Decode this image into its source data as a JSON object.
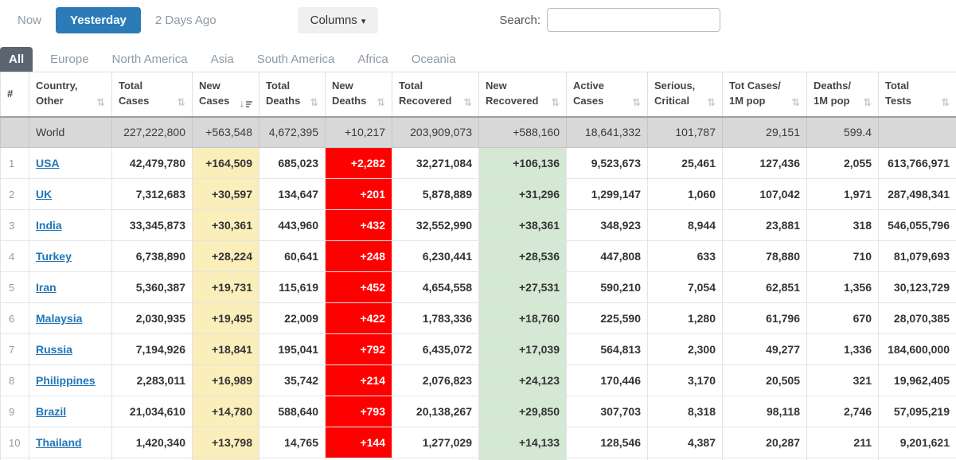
{
  "controls": {
    "time_filters": [
      {
        "label": "Now",
        "active": false
      },
      {
        "label": "Yesterday",
        "active": true
      },
      {
        "label": "2 Days Ago",
        "active": false
      }
    ],
    "columns_label": "Columns",
    "search_label": "Search:",
    "search_value": "",
    "search_placeholder": ""
  },
  "tabs": [
    {
      "label": "All",
      "active": true
    },
    {
      "label": "Europe",
      "active": false
    },
    {
      "label": "North America",
      "active": false
    },
    {
      "label": "Asia",
      "active": false
    },
    {
      "label": "South America",
      "active": false
    },
    {
      "label": "Africa",
      "active": false
    },
    {
      "label": "Oceania",
      "active": false
    }
  ],
  "table": {
    "headers": [
      {
        "id": "rank",
        "lines": [
          "#"
        ],
        "sort": "none"
      },
      {
        "id": "country",
        "lines": [
          "Country,",
          "Other"
        ],
        "sort": "unsorted"
      },
      {
        "id": "total_cases",
        "lines": [
          "Total",
          "Cases"
        ],
        "sort": "unsorted"
      },
      {
        "id": "new_cases",
        "lines": [
          "New",
          "Cases"
        ],
        "sort": "desc"
      },
      {
        "id": "total_deaths",
        "lines": [
          "Total",
          "Deaths"
        ],
        "sort": "unsorted"
      },
      {
        "id": "new_deaths",
        "lines": [
          "New",
          "Deaths"
        ],
        "sort": "unsorted"
      },
      {
        "id": "total_recovered",
        "lines": [
          "Total",
          "Recovered"
        ],
        "sort": "unsorted"
      },
      {
        "id": "new_recovered",
        "lines": [
          "New",
          "Recovered"
        ],
        "sort": "unsorted"
      },
      {
        "id": "active_cases",
        "lines": [
          "Active",
          "Cases"
        ],
        "sort": "unsorted"
      },
      {
        "id": "serious_critical",
        "lines": [
          "Serious,",
          "Critical"
        ],
        "sort": "unsorted"
      },
      {
        "id": "tot_cases_1m",
        "lines": [
          "Tot Cases/",
          "1M pop"
        ],
        "sort": "unsorted"
      },
      {
        "id": "deaths_1m",
        "lines": [
          "Deaths/",
          "1M pop"
        ],
        "sort": "unsorted"
      },
      {
        "id": "total_tests",
        "lines": [
          "Total",
          "Tests"
        ],
        "sort": "unsorted"
      }
    ],
    "world_row": {
      "rank": "",
      "country": "World",
      "total_cases": "227,222,800",
      "new_cases": "+563,548",
      "total_deaths": "4,672,395",
      "new_deaths": "+10,217",
      "total_recovered": "203,909,073",
      "new_recovered": "+588,160",
      "active_cases": "18,641,332",
      "serious_critical": "101,787",
      "tot_cases_1m": "29,151",
      "deaths_1m": "599.4",
      "total_tests": ""
    },
    "rows": [
      {
        "rank": "1",
        "country": "USA",
        "total_cases": "42,479,780",
        "new_cases": "+164,509",
        "total_deaths": "685,023",
        "new_deaths": "+2,282",
        "total_recovered": "32,271,084",
        "new_recovered": "+106,136",
        "active_cases": "9,523,673",
        "serious_critical": "25,461",
        "tot_cases_1m": "127,436",
        "deaths_1m": "2,055",
        "total_tests": "613,766,971"
      },
      {
        "rank": "2",
        "country": "UK",
        "total_cases": "7,312,683",
        "new_cases": "+30,597",
        "total_deaths": "134,647",
        "new_deaths": "+201",
        "total_recovered": "5,878,889",
        "new_recovered": "+31,296",
        "active_cases": "1,299,147",
        "serious_critical": "1,060",
        "tot_cases_1m": "107,042",
        "deaths_1m": "1,971",
        "total_tests": "287,498,341"
      },
      {
        "rank": "3",
        "country": "India",
        "total_cases": "33,345,873",
        "new_cases": "+30,361",
        "total_deaths": "443,960",
        "new_deaths": "+432",
        "total_recovered": "32,552,990",
        "new_recovered": "+38,361",
        "active_cases": "348,923",
        "serious_critical": "8,944",
        "tot_cases_1m": "23,881",
        "deaths_1m": "318",
        "total_tests": "546,055,796"
      },
      {
        "rank": "4",
        "country": "Turkey",
        "total_cases": "6,738,890",
        "new_cases": "+28,224",
        "total_deaths": "60,641",
        "new_deaths": "+248",
        "total_recovered": "6,230,441",
        "new_recovered": "+28,536",
        "active_cases": "447,808",
        "serious_critical": "633",
        "tot_cases_1m": "78,880",
        "deaths_1m": "710",
        "total_tests": "81,079,693"
      },
      {
        "rank": "5",
        "country": "Iran",
        "total_cases": "5,360,387",
        "new_cases": "+19,731",
        "total_deaths": "115,619",
        "new_deaths": "+452",
        "total_recovered": "4,654,558",
        "new_recovered": "+27,531",
        "active_cases": "590,210",
        "serious_critical": "7,054",
        "tot_cases_1m": "62,851",
        "deaths_1m": "1,356",
        "total_tests": "30,123,729"
      },
      {
        "rank": "6",
        "country": "Malaysia",
        "total_cases": "2,030,935",
        "new_cases": "+19,495",
        "total_deaths": "22,009",
        "new_deaths": "+422",
        "total_recovered": "1,783,336",
        "new_recovered": "+18,760",
        "active_cases": "225,590",
        "serious_critical": "1,280",
        "tot_cases_1m": "61,796",
        "deaths_1m": "670",
        "total_tests": "28,070,385"
      },
      {
        "rank": "7",
        "country": "Russia",
        "total_cases": "7,194,926",
        "new_cases": "+18,841",
        "total_deaths": "195,041",
        "new_deaths": "+792",
        "total_recovered": "6,435,072",
        "new_recovered": "+17,039",
        "active_cases": "564,813",
        "serious_critical": "2,300",
        "tot_cases_1m": "49,277",
        "deaths_1m": "1,336",
        "total_tests": "184,600,000"
      },
      {
        "rank": "8",
        "country": "Philippines",
        "total_cases": "2,283,011",
        "new_cases": "+16,989",
        "total_deaths": "35,742",
        "new_deaths": "+214",
        "total_recovered": "2,076,823",
        "new_recovered": "+24,123",
        "active_cases": "170,446",
        "serious_critical": "3,170",
        "tot_cases_1m": "20,505",
        "deaths_1m": "321",
        "total_tests": "19,962,405"
      },
      {
        "rank": "9",
        "country": "Brazil",
        "total_cases": "21,034,610",
        "new_cases": "+14,780",
        "total_deaths": "588,640",
        "new_deaths": "+793",
        "total_recovered": "20,138,267",
        "new_recovered": "+29,850",
        "active_cases": "307,703",
        "serious_critical": "8,318",
        "tot_cases_1m": "98,118",
        "deaths_1m": "2,746",
        "total_tests": "57,095,219"
      },
      {
        "rank": "10",
        "country": "Thailand",
        "total_cases": "1,420,340",
        "new_cases": "+13,798",
        "total_deaths": "14,765",
        "new_deaths": "+144",
        "total_recovered": "1,277,029",
        "new_recovered": "+14,133",
        "active_cases": "128,546",
        "serious_critical": "4,387",
        "tot_cases_1m": "20,287",
        "deaths_1m": "211",
        "total_tests": "9,201,621"
      }
    ]
  },
  "colors": {
    "accent_blue": "#2b7bb9",
    "link_blue": "#2077b8",
    "tab_active_gray": "#5a6570",
    "new_cases_yellow": "#faeebb",
    "new_deaths_red": "#ff0000",
    "new_recovered_green": "#d4e8d4",
    "world_row_gray": "#d8d8d8"
  }
}
